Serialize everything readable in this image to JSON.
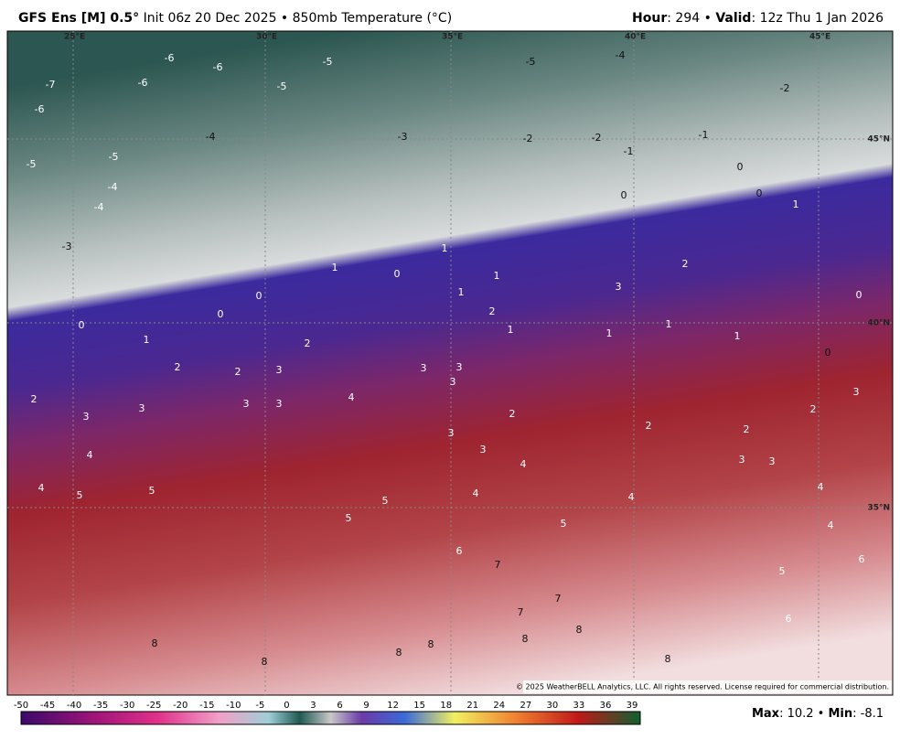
{
  "header": {
    "left": [
      {
        "text": "GFS Ens [M] 0.5°",
        "bold": true
      },
      {
        "text": " Init 06z 20 Dec 2025 • 850mb Temperature (°C)",
        "bold": false
      }
    ],
    "right": [
      {
        "text": "Hour",
        "bold": true
      },
      {
        "text": ": 294 • ",
        "bold": false
      },
      {
        "text": "Valid",
        "bold": true
      },
      {
        "text": ": 12z Thu 1 Jan 2026",
        "bold": false
      }
    ]
  },
  "map": {
    "longitudes": [
      "25°E",
      "30°E",
      "35°E",
      "40°E",
      "45°E"
    ],
    "latitudes": [
      "45°N",
      "40°N",
      "35°N"
    ],
    "contour_labels": [
      -7,
      -6,
      -6,
      -6,
      -6,
      -5,
      -5,
      -5,
      -5,
      -5,
      -4,
      -4,
      -4,
      -4,
      -3,
      -3,
      -2,
      -2,
      -2,
      -1,
      -1,
      0,
      0,
      0,
      0,
      0,
      0,
      0,
      0,
      0,
      1,
      1,
      1,
      1,
      1,
      1,
      1,
      1,
      1,
      1,
      2,
      2,
      2,
      2,
      2,
      2,
      2,
      2,
      2,
      2,
      3,
      3,
      3,
      3,
      3,
      3,
      3,
      3,
      3,
      3,
      3,
      3,
      3,
      3,
      4,
      4,
      4,
      4,
      4,
      4,
      4,
      4,
      5,
      5,
      5,
      5,
      5,
      5,
      6,
      6,
      6,
      7,
      7,
      7,
      8,
      8,
      8,
      8,
      8,
      8,
      8
    ],
    "copyright": "© 2025 WeatherBELL Analytics, LLC. All rights reserved. License required for commercial distribution."
  },
  "colorbar": {
    "ticks": [
      -50,
      -45,
      -40,
      -35,
      -30,
      -25,
      -20,
      -15,
      -10,
      -5,
      0,
      3,
      6,
      9,
      12,
      15,
      18,
      21,
      24,
      27,
      30,
      33,
      36,
      39
    ]
  },
  "footer": {
    "parts": [
      {
        "text": "Max",
        "bold": true
      },
      {
        "text": ": 10.2 • ",
        "bold": false
      },
      {
        "text": "Min",
        "bold": true
      },
      {
        "text": ": -8.1",
        "bold": false
      }
    ]
  }
}
